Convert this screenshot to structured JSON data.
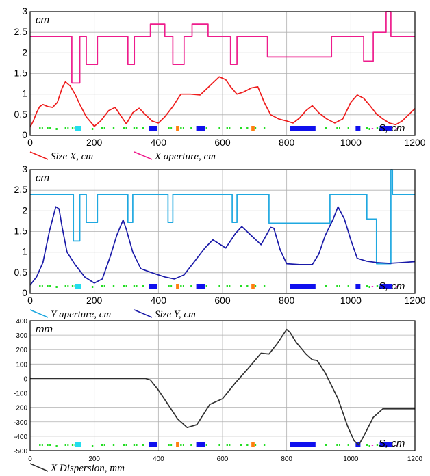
{
  "colors": {
    "size_x": "#ee1c1c",
    "x_aperture": "#ee1c8c",
    "y_aperture": "#1fa8e0",
    "size_y": "#1a1aa8",
    "dispersion": "#303030",
    "grid": "#b0b0b0",
    "element_green": "#22dd22",
    "element_blue": "#1010ee",
    "element_cyan": "#22ddee",
    "element_orange": "#ff7f10",
    "element_magenta": "#ee22cc"
  },
  "chart_data": [
    {
      "type": "line",
      "unit_label": "cm",
      "s_label": "S, cm",
      "xlim": [
        0,
        1200
      ],
      "ylim": [
        0,
        3
      ],
      "xticks": [
        "0",
        "200",
        "400",
        "600",
        "800",
        "1000",
        "1200"
      ],
      "yticks": [
        "0",
        "0.5",
        "1",
        "1.5",
        "2",
        "2.5",
        "3"
      ],
      "grid": true,
      "legend_placement": "below",
      "series": [
        {
          "name": "Size X, cm",
          "x": [
            0,
            10,
            20,
            30,
            40,
            55,
            70,
            85,
            100,
            110,
            125,
            140,
            155,
            175,
            200,
            220,
            245,
            265,
            285,
            300,
            320,
            340,
            360,
            380,
            400,
            420,
            445,
            470,
            500,
            530,
            560,
            590,
            610,
            625,
            645,
            665,
            690,
            710,
            730,
            750,
            775,
            800,
            820,
            840,
            860,
            880,
            900,
            925,
            950,
            975,
            1000,
            1020,
            1040,
            1060,
            1080,
            1100,
            1120,
            1140,
            1160,
            1180,
            1200
          ],
          "values": [
            0.2,
            0.35,
            0.55,
            0.7,
            0.75,
            0.7,
            0.68,
            0.8,
            1.15,
            1.3,
            1.2,
            1.0,
            0.75,
            0.45,
            0.22,
            0.35,
            0.6,
            0.68,
            0.45,
            0.28,
            0.55,
            0.66,
            0.5,
            0.35,
            0.3,
            0.45,
            0.7,
            1.0,
            1.0,
            0.98,
            1.2,
            1.42,
            1.35,
            1.18,
            1.0,
            1.05,
            1.15,
            1.18,
            0.8,
            0.5,
            0.4,
            0.35,
            0.3,
            0.42,
            0.6,
            0.72,
            0.55,
            0.4,
            0.3,
            0.4,
            0.8,
            0.98,
            0.9,
            0.72,
            0.52,
            0.4,
            0.3,
            0.26,
            0.35,
            0.5,
            0.65
          ]
        },
        {
          "name": "X aperture, cm",
          "x": [
            0,
            130,
            130,
            155,
            155,
            175,
            175,
            210,
            210,
            305,
            305,
            325,
            325,
            350,
            350,
            375,
            375,
            420,
            420,
            445,
            445,
            480,
            480,
            505,
            505,
            555,
            555,
            625,
            625,
            645,
            645,
            740,
            740,
            940,
            940,
            1040,
            1040,
            1070,
            1070,
            1110,
            1110,
            1125,
            1125,
            1130,
            1130,
            1200
          ],
          "values": [
            2.4,
            2.4,
            1.27,
            1.27,
            2.4,
            2.4,
            1.72,
            1.72,
            2.4,
            2.4,
            1.72,
            1.72,
            2.4,
            2.4,
            2.4,
            2.4,
            2.7,
            2.7,
            2.4,
            2.4,
            1.72,
            1.72,
            2.4,
            2.4,
            2.7,
            2.7,
            2.4,
            2.4,
            1.72,
            1.72,
            2.4,
            2.4,
            1.9,
            1.9,
            2.4,
            2.4,
            1.8,
            1.8,
            2.5,
            2.5,
            3.0,
            3.0,
            2.4,
            2.4,
            2.4,
            2.4
          ]
        }
      ]
    },
    {
      "type": "line",
      "unit_label": "cm",
      "s_label": "S, cm",
      "xlim": [
        0,
        1200
      ],
      "ylim": [
        0,
        3
      ],
      "xticks": [
        "0",
        "200",
        "400",
        "600",
        "800",
        "1000",
        "1200"
      ],
      "yticks": [
        "0",
        "0.5",
        "1",
        "1.5",
        "2",
        "2.5",
        "3"
      ],
      "grid": true,
      "legend_placement": "below",
      "series": [
        {
          "name": "Y aperture, cm",
          "x": [
            0,
            135,
            135,
            155,
            155,
            175,
            175,
            210,
            210,
            305,
            305,
            320,
            320,
            430,
            430,
            445,
            445,
            630,
            630,
            645,
            645,
            745,
            745,
            935,
            935,
            1050,
            1050,
            1080,
            1080,
            1125,
            1125,
            1130,
            1130,
            1200
          ],
          "values": [
            2.4,
            2.4,
            1.27,
            1.27,
            2.4,
            2.4,
            1.72,
            1.72,
            2.4,
            2.4,
            1.72,
            1.72,
            2.4,
            2.4,
            1.72,
            1.72,
            2.4,
            2.4,
            1.72,
            1.72,
            2.4,
            2.4,
            1.7,
            1.7,
            2.4,
            2.4,
            1.8,
            1.8,
            0.72,
            0.72,
            3.0,
            3.0,
            2.4,
            2.4
          ]
        },
        {
          "name": "Size Y, cm",
          "x": [
            0,
            20,
            40,
            60,
            80,
            90,
            100,
            115,
            140,
            170,
            200,
            225,
            250,
            270,
            290,
            300,
            320,
            345,
            380,
            420,
            450,
            480,
            510,
            545,
            570,
            610,
            640,
            660,
            690,
            720,
            750,
            760,
            780,
            800,
            840,
            880,
            900,
            920,
            945,
            960,
            980,
            1000,
            1020,
            1050,
            1080,
            1120,
            1160,
            1200
          ],
          "values": [
            0.2,
            0.4,
            0.75,
            1.5,
            2.1,
            2.05,
            1.6,
            1.0,
            0.7,
            0.4,
            0.25,
            0.35,
            0.9,
            1.4,
            1.78,
            1.55,
            1.0,
            0.6,
            0.5,
            0.4,
            0.35,
            0.45,
            0.75,
            1.1,
            1.3,
            1.1,
            1.45,
            1.62,
            1.4,
            1.18,
            1.6,
            1.58,
            1.05,
            0.72,
            0.7,
            0.7,
            0.95,
            1.4,
            1.8,
            2.1,
            1.8,
            1.3,
            0.85,
            0.78,
            0.75,
            0.73,
            0.75,
            0.77
          ]
        }
      ]
    },
    {
      "type": "line",
      "unit_label": "mm",
      "s_label": "S, cm",
      "xlim": [
        0,
        1200
      ],
      "ylim": [
        -500,
        400
      ],
      "xticks": [
        "0",
        "200",
        "400",
        "600",
        "800",
        "1000",
        "1200"
      ],
      "yticks": [
        "-500",
        "-400",
        "-300",
        "-200",
        "-100",
        "0",
        "100",
        "200",
        "300",
        "400"
      ],
      "grid": true,
      "legend_placement": "below",
      "series": [
        {
          "name": "X Dispersion, mm",
          "x": [
            0,
            360,
            375,
            400,
            430,
            460,
            490,
            520,
            560,
            600,
            640,
            680,
            720,
            745,
            770,
            800,
            810,
            830,
            860,
            880,
            895,
            920,
            960,
            990,
            1010,
            1025,
            1040,
            1070,
            1100,
            1130,
            1200
          ],
          "values": [
            0,
            0,
            -10,
            -80,
            -180,
            -280,
            -340,
            -320,
            -180,
            -140,
            -30,
            70,
            175,
            170,
            240,
            340,
            320,
            250,
            170,
            130,
            125,
            40,
            -140,
            -330,
            -430,
            -460,
            -400,
            -270,
            -210,
            -210,
            -210
          ]
        }
      ]
    }
  ],
  "elements": {
    "green": [
      [
        28,
        40
      ],
      [
        52,
        62
      ],
      [
        80,
        88
      ],
      [
        108,
        118
      ],
      [
        130,
        140
      ],
      [
        192,
        200
      ],
      [
        222,
        232
      ],
      [
        258,
        266
      ],
      [
        290,
        300
      ],
      [
        322,
        332
      ],
      [
        350,
        358
      ],
      [
        385,
        392
      ],
      [
        430,
        440
      ],
      [
        468,
        478
      ],
      [
        500,
        508
      ],
      [
        548,
        556
      ],
      [
        588,
        596
      ],
      [
        612,
        622
      ],
      [
        655,
        663
      ],
      [
        675,
        683
      ],
      [
        700,
        708
      ],
      [
        728,
        736
      ],
      [
        920,
        928
      ],
      [
        955,
        965
      ],
      [
        990,
        998
      ],
      [
        1048,
        1058
      ],
      [
        1080,
        1090
      ]
    ],
    "blue": [
      [
        370,
        395
      ],
      [
        518,
        545
      ],
      [
        810,
        890
      ],
      [
        1015,
        1030
      ],
      [
        1090,
        1130
      ]
    ],
    "cyan": [
      [
        140,
        160
      ]
    ],
    "orange": [
      [
        455,
        465
      ],
      [
        690,
        700
      ]
    ],
    "magenta": [
      [
        1065,
        1070
      ],
      [
        1140,
        1145
      ]
    ]
  }
}
